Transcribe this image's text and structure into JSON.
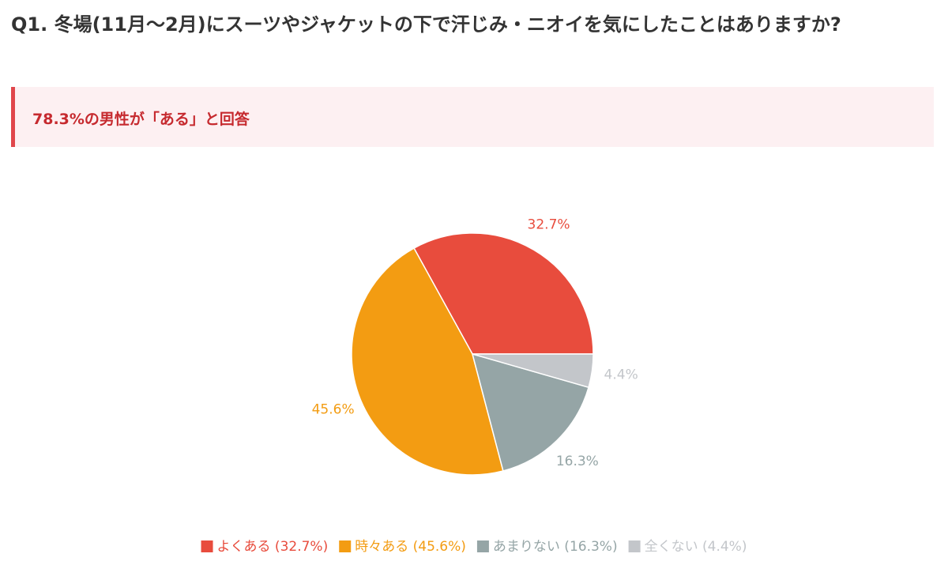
{
  "chart_data": {
    "type": "pie",
    "title": "Q1. 冬場(11月〜2月)にスーツやジャケットの下で汗じみ・ニオイを気にしたことはありますか?",
    "subtitle": "78.3%の男性が「ある」と回答",
    "categories": [
      "よくある (32.7%)",
      "時々ある (45.6%)",
      "あまりない (16.3%)",
      "全くない (4.4%)"
    ],
    "values": [
      32.7,
      45.6,
      16.3,
      4.4
    ],
    "value_labels": [
      "32.7%",
      "45.6%",
      "16.3%",
      "4.4%"
    ],
    "colors": [
      "#e84c3d",
      "#f39c12",
      "#95a5a6",
      "#c3c6ca"
    ],
    "legend": "bottom"
  }
}
